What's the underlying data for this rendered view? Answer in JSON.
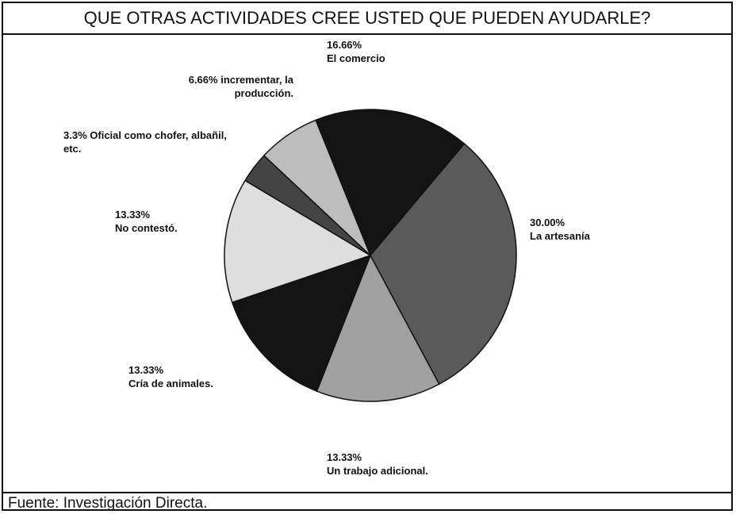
{
  "chart_data": {
    "type": "pie",
    "title": "QUE OTRAS ACTIVIDADES CREE USTED QUE PUEDEN AYUDARLE?",
    "categories": [
      "El comercio",
      "La artesanía",
      "Un trabajo adicional.",
      "Cría de animales.",
      "No contestó.",
      "Oficial como chofer, albañil, etc.",
      "incrementar, la producción."
    ],
    "values": [
      16.66,
      30.0,
      13.33,
      13.33,
      13.33,
      3.3,
      6.66
    ],
    "value_labels": [
      "16.66%",
      "30.00%",
      "13.33%",
      "13.33%",
      "13.33%",
      "3.3%",
      "6.66%"
    ],
    "colors": [
      "#141414",
      "#5a5a5a",
      "#a0a0a0",
      "#141414",
      "#dedede",
      "#444444",
      "#bdbdbd"
    ],
    "source": "Fuente: Investigación Directa."
  }
}
